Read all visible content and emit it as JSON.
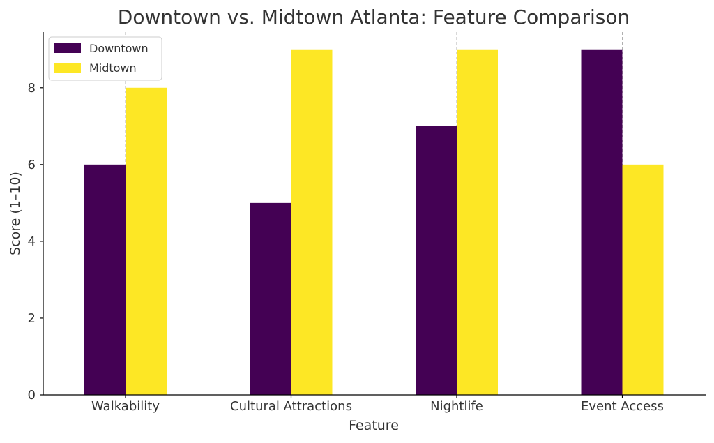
{
  "chart_data": {
    "type": "bar",
    "title": "Downtown vs. Midtown Atlanta: Feature Comparison",
    "xlabel": "Feature",
    "ylabel": "Score (1–10)",
    "categories": [
      "Walkability",
      "Cultural Attractions",
      "Nightlife",
      "Event Access"
    ],
    "series": [
      {
        "name": "Downtown",
        "values": [
          6,
          5,
          7,
          9
        ],
        "color": "#440154"
      },
      {
        "name": "Midtown",
        "values": [
          8,
          9,
          9,
          6
        ],
        "color": "#fde725"
      }
    ],
    "ylim": [
      0,
      9.45
    ],
    "yticks": [
      0,
      2,
      4,
      6,
      8
    ],
    "grid": "x-dashed",
    "legend": "top-left"
  }
}
